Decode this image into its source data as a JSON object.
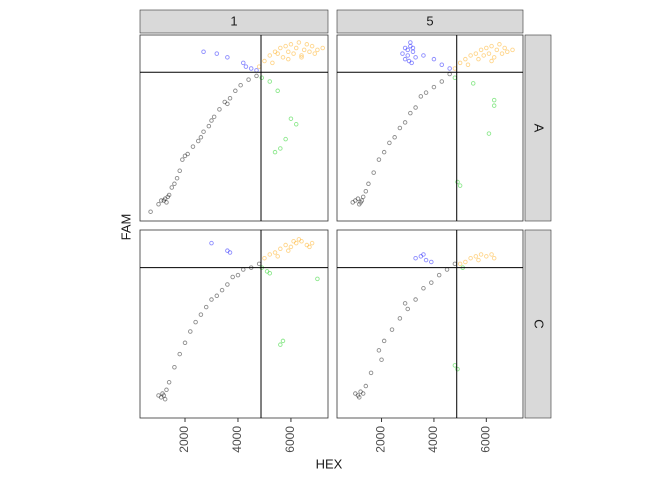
{
  "chart_data": {
    "type": "scatter",
    "x_label": "HEX",
    "y_label": "FAM",
    "cols": [
      "1",
      "5"
    ],
    "rows": [
      "A",
      "C"
    ],
    "xlim": [
      300,
      7400
    ],
    "ylim": [
      0,
      10000
    ],
    "xticks": [
      2000,
      4000,
      6000
    ],
    "vline": 4870,
    "hline": 8000,
    "panels": [
      {
        "series": [
          {
            "color": "#000000",
            "x": [
              700,
              1000,
              1100,
              1200,
              1250,
              1300,
              1350,
              1500,
              1700,
              1800,
              1900,
              2100,
              2300,
              2500,
              2700,
              2900,
              3100,
              3300,
              3500,
              3700,
              3900,
              4100,
              4400,
              4700,
              1400,
              1600,
              2000,
              2600,
              3000,
              3600
            ],
            "y": [
              500,
              900,
              1100,
              1100,
              1200,
              1000,
              1300,
              1800,
              2300,
              2700,
              3300,
              3600,
              4000,
              4300,
              4800,
              5100,
              5600,
              6000,
              6400,
              6600,
              7000,
              7300,
              7600,
              7800,
              1400,
              2000,
              3500,
              4500,
              5400,
              6300
            ]
          },
          {
            "color": "#0000ff",
            "x": [
              2700,
              3200,
              3600,
              4200,
              4500,
              4700,
              4300
            ],
            "y": [
              9100,
              9000,
              8800,
              8500,
              8200,
              8100,
              8300
            ]
          },
          {
            "color": "#00cd00",
            "x": [
              4900,
              5200,
              5500,
              6000,
              5800,
              6200,
              5600,
              5400
            ],
            "y": [
              7700,
              7500,
              7000,
              5500,
              4400,
              5200,
              3900,
              3700
            ]
          },
          {
            "color": "#ffa500",
            "x": [
              4800,
              5000,
              5200,
              5400,
              5500,
              5600,
              5700,
              5800,
              5900,
              6000,
              6100,
              6200,
              6300,
              6400,
              6500,
              6600,
              6700,
              6800,
              7000,
              7200,
              5300,
              5900,
              6400,
              6900
            ],
            "y": [
              8300,
              8600,
              8900,
              9100,
              9000,
              9300,
              8800,
              9400,
              9100,
              9500,
              9000,
              9300,
              9600,
              8900,
              9200,
              9500,
              9100,
              9400,
              9200,
              9300,
              8500,
              8700,
              8800,
              9000
            ]
          }
        ]
      },
      {
        "series": [
          {
            "color": "#000000",
            "x": [
              900,
              1000,
              1100,
              1200,
              1300,
              1400,
              1500,
              1700,
              1900,
              2100,
              2300,
              2500,
              2700,
              2900,
              3100,
              3300,
              3500,
              3700,
              4000,
              4300,
              4600,
              1150,
              1250
            ],
            "y": [
              1000,
              1100,
              1200,
              1000,
              1300,
              1600,
              2000,
              2600,
              3300,
              3700,
              4200,
              4500,
              5000,
              5300,
              5800,
              6100,
              6700,
              6900,
              7200,
              7500,
              7900,
              900,
              1100
            ]
          },
          {
            "color": "#0000ff",
            "x": [
              2800,
              2900,
              3000,
              3100,
              3200,
              3300,
              2900,
              3000,
              3100,
              3200,
              3050,
              3150,
              3600,
              4000,
              4300,
              4600
            ],
            "y": [
              9000,
              9300,
              8900,
              9400,
              9100,
              8800,
              8700,
              9200,
              9600,
              9300,
              8600,
              8500,
              8900,
              8700,
              8400,
              8200
            ]
          },
          {
            "color": "#00cd00",
            "x": [
              4800,
              5500,
              6300,
              6100,
              4900,
              5000,
              6300
            ],
            "y": [
              7700,
              7400,
              6500,
              4700,
              2100,
              1900,
              6200
            ]
          },
          {
            "color": "#ffa500",
            "x": [
              4800,
              5000,
              5200,
              5400,
              5600,
              5700,
              5800,
              5900,
              6000,
              6100,
              6200,
              6300,
              6400,
              6500,
              6600,
              6700,
              6800,
              7000,
              5300,
              6200
            ],
            "y": [
              8200,
              8500,
              8700,
              8900,
              9000,
              8700,
              9200,
              8900,
              9300,
              9000,
              9400,
              8800,
              9200,
              9500,
              9000,
              9300,
              9100,
              9200,
              8400,
              8600
            ]
          }
        ]
      },
      {
        "series": [
          {
            "color": "#000000",
            "x": [
              1000,
              1100,
              1150,
              1200,
              1250,
              1300,
              1400,
              1600,
              1800,
              2000,
              2200,
              2400,
              2600,
              2800,
              3000,
              3200,
              3400,
              3600,
              3800,
              4000,
              4200,
              4500,
              4800
            ],
            "y": [
              1200,
              1100,
              1300,
              1200,
              1000,
              1500,
              1900,
              2700,
              3400,
              4000,
              4600,
              5100,
              5500,
              5900,
              6300,
              6500,
              6800,
              7100,
              7500,
              7600,
              7900,
              8000,
              8200
            ]
          },
          {
            "color": "#0000ff",
            "x": [
              3000,
              3600,
              3700
            ],
            "y": [
              9300,
              8900,
              8800
            ]
          },
          {
            "color": "#00cd00",
            "x": [
              4900,
              5100,
              5200,
              5700,
              5600,
              7000
            ],
            "y": [
              8000,
              7800,
              7700,
              4100,
              3900,
              7400
            ]
          },
          {
            "color": "#ffa500",
            "x": [
              5000,
              5200,
              5400,
              5600,
              5800,
              6000,
              6200,
              6400,
              6600,
              6800,
              5500,
              5900,
              6300,
              6700,
              6100
            ],
            "y": [
              8500,
              8700,
              8800,
              9000,
              9200,
              9100,
              9300,
              9400,
              9200,
              9300,
              8600,
              8900,
              9500,
              9100,
              9400
            ]
          }
        ]
      },
      {
        "series": [
          {
            "color": "#000000",
            "x": [
              1000,
              1100,
              1200,
              1300,
              1150,
              1400,
              1600,
              1900,
              2100,
              2400,
              2700,
              3000,
              3300,
              3600,
              3900,
              4200,
              4500,
              4800,
              2000,
              2900
            ],
            "y": [
              1300,
              1200,
              1400,
              1300,
              1100,
              1700,
              2400,
              3600,
              4100,
              4700,
              5300,
              5800,
              6300,
              6900,
              7200,
              7600,
              7900,
              8200,
              3100,
              6100
            ]
          },
          {
            "color": "#0000ff",
            "x": [
              3300,
              3500,
              3700,
              3900,
              3600
            ],
            "y": [
              8500,
              8600,
              8400,
              8300,
              8700
            ]
          },
          {
            "color": "#00cd00",
            "x": [
              4800,
              4900,
              5100
            ],
            "y": [
              2800,
              2600,
              8000
            ]
          },
          {
            "color": "#ffa500",
            "x": [
              5000,
              5200,
              5400,
              5600,
              5800,
              6000,
              6200,
              6300,
              5700
            ],
            "y": [
              8200,
              8300,
              8500,
              8600,
              8700,
              8600,
              8700,
              8500,
              8400
            ]
          }
        ]
      }
    ]
  }
}
